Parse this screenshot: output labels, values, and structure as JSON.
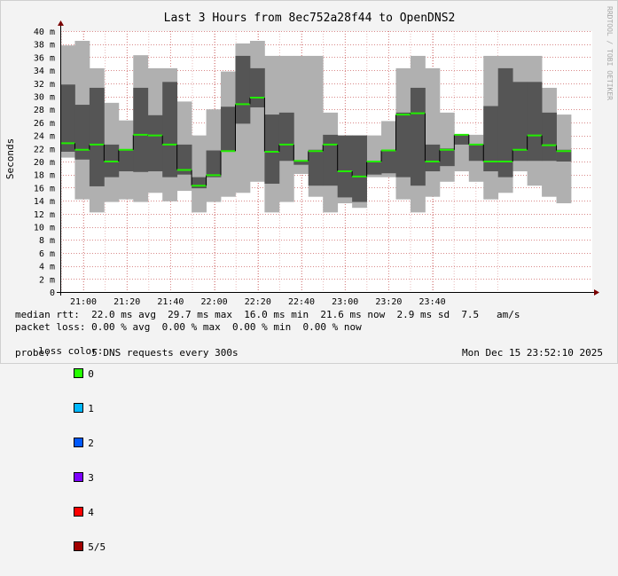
{
  "chart_data": {
    "type": "area",
    "title": "Last 3 Hours from 8ec752a28f44 to OpenDNS2",
    "ylabel": "Seconds",
    "ylim": [
      0,
      40
    ],
    "y_unit": "m",
    "y_ticks": [
      0,
      2,
      4,
      6,
      8,
      10,
      12,
      14,
      16,
      18,
      20,
      22,
      24,
      26,
      28,
      30,
      32,
      34,
      36,
      38,
      40
    ],
    "y_tick_labels": [
      "0",
      "2 m",
      "4 m",
      "6 m",
      "8 m",
      "10 m",
      "12 m",
      "14 m",
      "16 m",
      "18 m",
      "20 m",
      "22 m",
      "24 m",
      "26 m",
      "28 m",
      "30 m",
      "32 m",
      "34 m",
      "36 m",
      "38 m",
      "40 m"
    ],
    "x_ticks": [
      "21:00",
      "21:20",
      "21:40",
      "22:00",
      "22:20",
      "22:40",
      "23:00",
      "23:20",
      "23:40"
    ],
    "grid": true,
    "watermark": "RRDTOOL / TOBI OETIKER",
    "samples": [
      {
        "min": 20.6,
        "lo": 21.5,
        "median": 22.8,
        "hi": 31.8,
        "max": 37.8
      },
      {
        "min": 14.2,
        "lo": 20.3,
        "median": 21.8,
        "hi": 28.7,
        "max": 38.5
      },
      {
        "min": 12.2,
        "lo": 16.2,
        "median": 22.6,
        "hi": 31.3,
        "max": 34.3
      },
      {
        "min": 13.8,
        "lo": 17.6,
        "median": 20.0,
        "hi": 22.6,
        "max": 29.0
      },
      {
        "min": 14.2,
        "lo": 18.5,
        "median": 21.8,
        "hi": 21.8,
        "max": 26.3
      },
      {
        "min": 13.8,
        "lo": 18.4,
        "median": 24.1,
        "hi": 31.3,
        "max": 36.3
      },
      {
        "min": 15.2,
        "lo": 18.5,
        "median": 24.0,
        "hi": 27.1,
        "max": 34.3
      },
      {
        "min": 13.9,
        "lo": 17.6,
        "median": 22.6,
        "hi": 32.2,
        "max": 34.3
      },
      {
        "min": 15.5,
        "lo": 18.0,
        "median": 18.7,
        "hi": 22.6,
        "max": 29.2
      },
      {
        "min": 12.2,
        "lo": 15.9,
        "median": 16.3,
        "hi": 17.6,
        "max": 24.0
      },
      {
        "min": 13.8,
        "lo": 17.6,
        "median": 17.9,
        "hi": 21.7,
        "max": 28.0
      },
      {
        "min": 14.6,
        "lo": 21.6,
        "median": 21.6,
        "hi": 28.4,
        "max": 33.8
      },
      {
        "min": 15.2,
        "lo": 25.8,
        "median": 28.8,
        "hi": 36.2,
        "max": 38.1
      },
      {
        "min": 16.9,
        "lo": 28.3,
        "median": 29.8,
        "hi": 34.3,
        "max": 38.5
      },
      {
        "min": 12.2,
        "lo": 16.6,
        "median": 21.5,
        "hi": 27.2,
        "max": 36.2
      },
      {
        "min": 13.8,
        "lo": 20.1,
        "median": 22.6,
        "hi": 27.5,
        "max": 36.2
      },
      {
        "min": 18.1,
        "lo": 19.5,
        "median": 20.1,
        "hi": 20.1,
        "max": 36.2
      },
      {
        "min": 14.6,
        "lo": 16.3,
        "median": 21.6,
        "hi": 21.8,
        "max": 36.2
      },
      {
        "min": 12.2,
        "lo": 16.3,
        "median": 22.6,
        "hi": 24.1,
        "max": 27.5
      },
      {
        "min": 13.6,
        "lo": 14.5,
        "median": 18.5,
        "hi": 24.0,
        "max": 24.0
      },
      {
        "min": 12.9,
        "lo": 13.8,
        "median": 17.7,
        "hi": 24.0,
        "max": 24.0
      },
      {
        "min": 17.6,
        "lo": 18.0,
        "median": 20.0,
        "hi": 20.1,
        "max": 24.0
      },
      {
        "min": 17.6,
        "lo": 18.2,
        "median": 21.7,
        "hi": 21.8,
        "max": 26.2
      },
      {
        "min": 14.2,
        "lo": 17.6,
        "median": 27.2,
        "hi": 27.5,
        "max": 34.3
      },
      {
        "min": 12.2,
        "lo": 16.3,
        "median": 27.4,
        "hi": 31.3,
        "max": 36.2
      },
      {
        "min": 14.6,
        "lo": 18.5,
        "median": 20.0,
        "hi": 22.6,
        "max": 34.3
      },
      {
        "min": 16.9,
        "lo": 19.3,
        "median": 21.8,
        "hi": 22.0,
        "max": 27.5
      },
      {
        "min": 18.5,
        "lo": 22.6,
        "median": 24.1,
        "hi": 24.1,
        "max": 24.1
      },
      {
        "min": 16.9,
        "lo": 20.1,
        "median": 22.6,
        "hi": 22.6,
        "max": 24.1
      },
      {
        "min": 14.2,
        "lo": 18.5,
        "median": 20.0,
        "hi": 28.5,
        "max": 36.2
      },
      {
        "min": 15.2,
        "lo": 17.6,
        "median": 20.0,
        "hi": 34.3,
        "max": 36.2
      },
      {
        "min": 18.5,
        "lo": 20.1,
        "median": 21.8,
        "hi": 32.2,
        "max": 36.2
      },
      {
        "min": 16.3,
        "lo": 20.1,
        "median": 24.0,
        "hi": 32.2,
        "max": 36.2
      },
      {
        "min": 14.6,
        "lo": 20.1,
        "median": 22.5,
        "hi": 27.5,
        "max": 31.3
      },
      {
        "min": 13.6,
        "lo": 20.0,
        "median": 21.6,
        "hi": 21.8,
        "max": 27.2
      }
    ]
  },
  "stats": {
    "median_rtt": "median rtt:  22.0 ms avg  29.7 ms max  16.0 ms min  21.6 ms now  2.9 ms sd  7.5   am/s",
    "packet_loss": "packet loss: 0.00 % avg  0.00 % max  0.00 % min  0.00 % now"
  },
  "legend": {
    "label": "loss color:",
    "items": [
      {
        "label": "0",
        "color": "#26ff00"
      },
      {
        "label": "1",
        "color": "#00b8ff"
      },
      {
        "label": "2",
        "color": "#0059ff"
      },
      {
        "label": "3",
        "color": "#7e00ff"
      },
      {
        "label": "4",
        "color": "#ff0000"
      },
      {
        "label": "5/5",
        "color": "#a10000"
      }
    ]
  },
  "probe": "probe:       5 DNS requests every 300s",
  "timestamp": "Mon Dec 15 23:52:10 2025",
  "colors": {
    "outer_band": "#b0b0b0",
    "inner_band": "#555555",
    "median": "#22ee00",
    "grid_minor": "#e8bcbc",
    "grid_major": "#d98a8a"
  }
}
